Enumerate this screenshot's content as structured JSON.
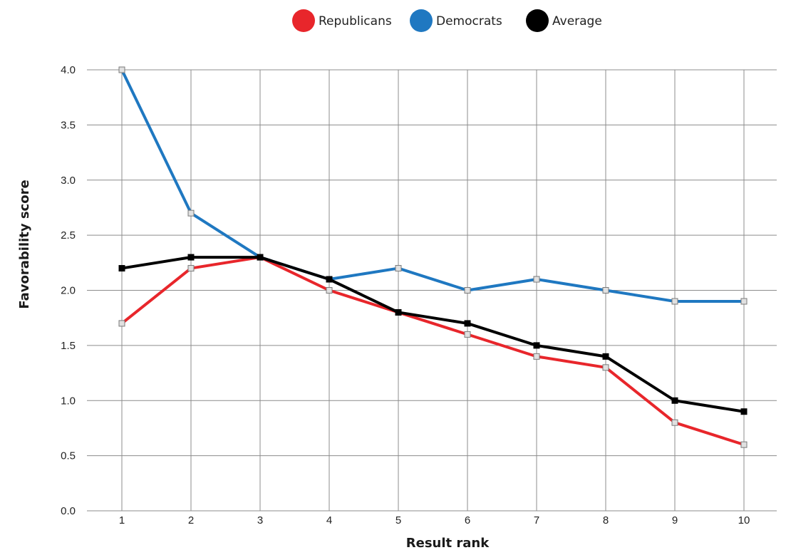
{
  "chart_data": {
    "type": "line",
    "xlabel": "Result rank",
    "ylabel": "Favorability score",
    "categories": [
      "1",
      "2",
      "3",
      "4",
      "5",
      "6",
      "7",
      "8",
      "9",
      "10"
    ],
    "ylim": [
      0,
      4
    ],
    "yticks": [
      "0.0",
      "0.5",
      "1.0",
      "1.5",
      "2.0",
      "2.5",
      "3.0",
      "3.5",
      "4.0"
    ],
    "grid": true,
    "legend_position": "top-center",
    "series": [
      {
        "name": "Republicans",
        "color": "#e8262b",
        "values": [
          1.7,
          2.2,
          2.3,
          2.0,
          1.8,
          1.6,
          1.4,
          1.3,
          0.8,
          0.6
        ]
      },
      {
        "name": "Democrats",
        "color": "#1f78c1",
        "values": [
          4.0,
          2.7,
          2.3,
          2.1,
          2.2,
          2.0,
          2.1,
          2.0,
          1.9,
          1.9
        ]
      },
      {
        "name": "Average",
        "color": "#000000",
        "values": [
          2.2,
          2.3,
          2.3,
          2.1,
          1.8,
          1.7,
          1.5,
          1.4,
          1.0,
          0.9
        ]
      }
    ]
  }
}
